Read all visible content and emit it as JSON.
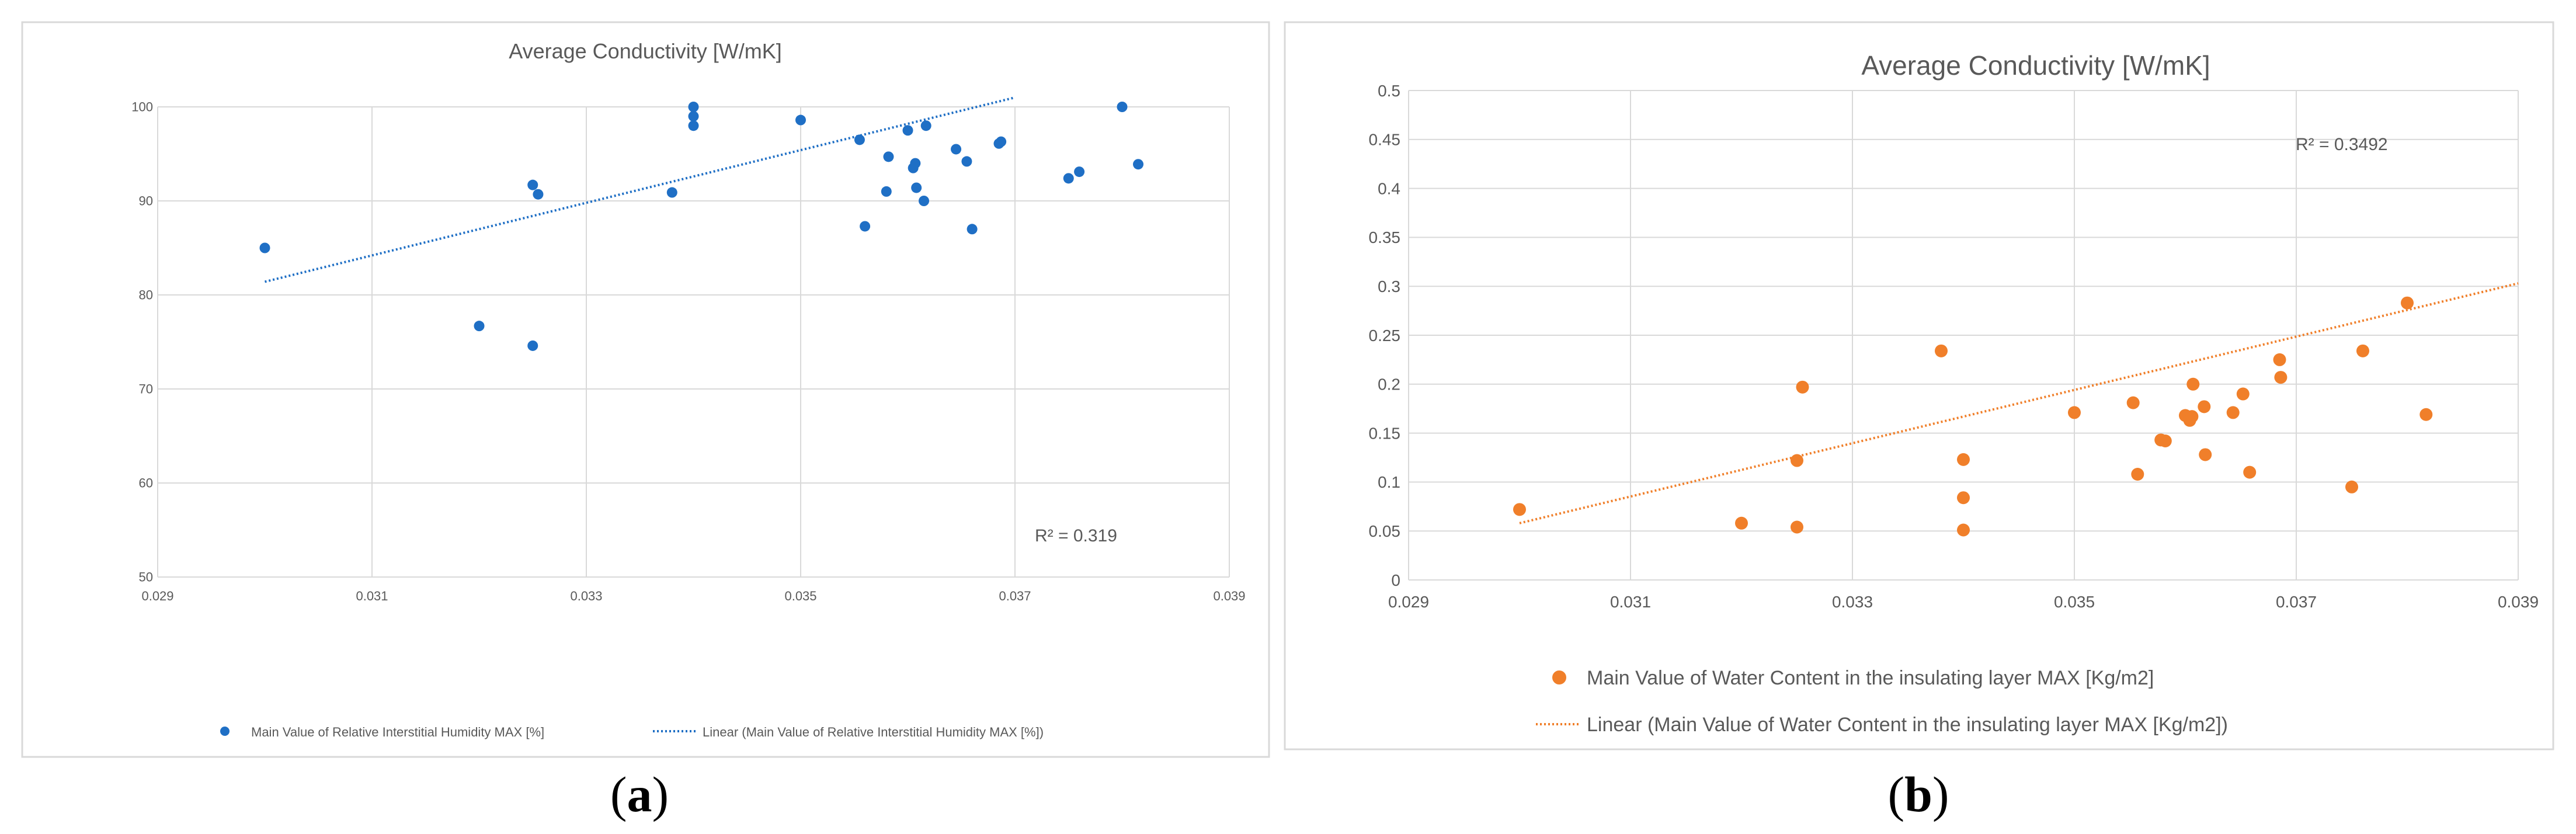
{
  "chart_data": [
    {
      "type": "scatter",
      "panel_label": "a",
      "title": "Average Conductivity [W/mK]",
      "xlabel": "",
      "ylabel": "",
      "xlim": [
        0.029,
        0.039
      ],
      "ylim": [
        50,
        100
      ],
      "x_ticks": [
        "0.029",
        "0.031",
        "0.033",
        "0.035",
        "0.037",
        "0.039"
      ],
      "y_ticks": [
        "50",
        "60",
        "70",
        "80",
        "90",
        "100"
      ],
      "grid": true,
      "legend_position": "bottom",
      "annotation": "R² = 0.319",
      "series": [
        {
          "name": "Main Value of Relative Interstitial Humidity MAX [%]",
          "color": "#1f6fc5",
          "points": [
            [
              0.03,
              85.0
            ],
            [
              0.032,
              76.7
            ],
            [
              0.0325,
              74.6
            ],
            [
              0.0325,
              91.7
            ],
            [
              0.03255,
              90.7
            ],
            [
              0.0338,
              90.9
            ],
            [
              0.034,
              100.0
            ],
            [
              0.034,
              98.0
            ],
            [
              0.034,
              99.0
            ],
            [
              0.035,
              98.6
            ],
            [
              0.03555,
              96.5
            ],
            [
              0.0356,
              87.3
            ],
            [
              0.0358,
              91.0
            ],
            [
              0.03582,
              94.7
            ],
            [
              0.036,
              97.5
            ],
            [
              0.03605,
              93.5
            ],
            [
              0.03607,
              94.0
            ],
            [
              0.03608,
              91.4
            ],
            [
              0.03615,
              90.0
            ],
            [
              0.03617,
              98.0
            ],
            [
              0.03645,
              95.5
            ],
            [
              0.03655,
              94.2
            ],
            [
              0.0366,
              87.0
            ],
            [
              0.03685,
              96.1
            ],
            [
              0.03687,
              96.3
            ],
            [
              0.0375,
              92.4
            ],
            [
              0.0376,
              93.1
            ],
            [
              0.038,
              100.0
            ],
            [
              0.03815,
              93.9
            ]
          ]
        }
      ],
      "trendline": {
        "name": "Linear (Main Value of Relative Interstitial Humidity MAX [%])",
        "color": "#1f6fc5",
        "x": [
          0.03,
          0.037
        ],
        "y": [
          81.4,
          101.0
        ]
      }
    },
    {
      "type": "scatter",
      "panel_label": "b",
      "title": "Average Conductivity [W/mK]",
      "xlabel": "",
      "ylabel": "",
      "xlim": [
        0.029,
        0.039
      ],
      "ylim": [
        0,
        0.5
      ],
      "x_ticks": [
        "0.029",
        "0.031",
        "0.033",
        "0.035",
        "0.037",
        "0.039"
      ],
      "y_ticks": [
        "0",
        "0.05",
        "0.1",
        "0.15",
        "0.2",
        "0.25",
        "0.3",
        "0.35",
        "0.4",
        "0.45",
        "0.5"
      ],
      "grid": true,
      "legend_position": "bottom",
      "annotation": "R² = 0.3492",
      "series": [
        {
          "name": "Main Value of Water Content in the insulating layer MAX [Kg/m2]",
          "color": "#f07f2a",
          "points": [
            [
              0.03,
              0.072
            ],
            [
              0.032,
              0.058
            ],
            [
              0.0325,
              0.054
            ],
            [
              0.0325,
              0.122
            ],
            [
              0.03255,
              0.197
            ],
            [
              0.0338,
              0.234
            ],
            [
              0.034,
              0.123
            ],
            [
              0.034,
              0.084
            ],
            [
              0.034,
              0.051
            ],
            [
              0.035,
              0.171
            ],
            [
              0.03553,
              0.181
            ],
            [
              0.03557,
              0.108
            ],
            [
              0.03578,
              0.143
            ],
            [
              0.03582,
              0.142
            ],
            [
              0.036,
              0.168
            ],
            [
              0.03604,
              0.163
            ],
            [
              0.03606,
              0.167
            ],
            [
              0.03607,
              0.2
            ],
            [
              0.03617,
              0.177
            ],
            [
              0.03618,
              0.128
            ],
            [
              0.03643,
              0.171
            ],
            [
              0.03652,
              0.19
            ],
            [
              0.03658,
              0.11
            ],
            [
              0.03685,
              0.225
            ],
            [
              0.03686,
              0.207
            ],
            [
              0.0375,
              0.095
            ],
            [
              0.0376,
              0.234
            ],
            [
              0.038,
              0.283
            ],
            [
              0.03817,
              0.169
            ]
          ]
        }
      ],
      "trendline": {
        "name": "Linear (Main Value of Water Content in the insulating layer MAX [Kg/m2])",
        "color": "#f07f2a",
        "x": [
          0.03,
          0.039
        ],
        "y": [
          0.058,
          0.303
        ]
      }
    }
  ]
}
